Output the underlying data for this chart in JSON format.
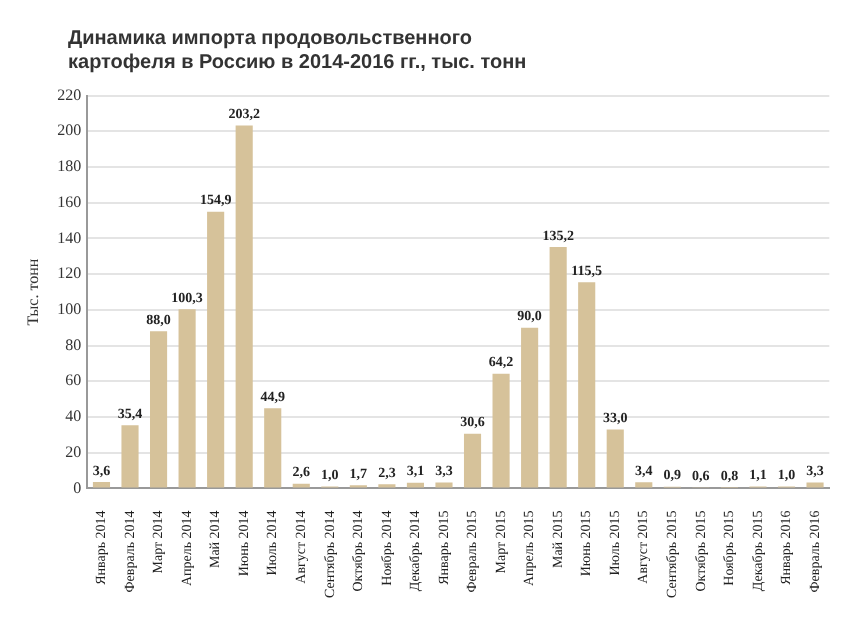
{
  "chart_data": {
    "type": "bar",
    "title": "Динамика импорта продовольственного картофеля в Россию в 2014-2016 гг., тыс. тонн",
    "ylabel": "Тыс. тонн",
    "categories": [
      "Январь 2014",
      "Февраль 2014",
      "Март 2014",
      "Апрель 2014",
      "Май 2014",
      "Июнь 2014",
      "Июль 2014",
      "Август 2014",
      "Сентябрь 2014",
      "Октябрь 2014",
      "Ноябрь 2014",
      "Декабрь 2014",
      "Январь 2015",
      "Февраль 2015",
      "Март 2015",
      "Апрель 2015",
      "Май 2015",
      "Июнь 2015",
      "Июль 2015",
      "Август 2015",
      "Сентябрь 2015",
      "Октябрь 2015",
      "Ноябрь 2015",
      "Декабрь 2015",
      "Январь 2016",
      "Февраль 2016"
    ],
    "values": [
      3.6,
      35.4,
      88.0,
      100.3,
      154.9,
      203.2,
      44.9,
      2.6,
      1.0,
      1.7,
      2.3,
      3.1,
      3.3,
      30.6,
      64.2,
      90.0,
      135.2,
      115.5,
      33.0,
      3.4,
      0.9,
      0.6,
      0.8,
      1.1,
      1.0,
      3.3
    ],
    "value_labels": [
      "3,6",
      "35,4",
      "88,0",
      "100,3",
      "154,9",
      "203,2",
      "44,9",
      "2,6",
      "1,0",
      "1,7",
      "2,3",
      "3,1",
      "3,3",
      "30,6",
      "64,2",
      "90,0",
      "135,2",
      "115,5",
      "33,0",
      "3,4",
      "0,9",
      "0,6",
      "0,8",
      "1,1",
      "1,0",
      "3,3"
    ],
    "color": "#d6c29a",
    "ylim": [
      0,
      220
    ],
    "yticks": [
      0,
      20,
      40,
      60,
      80,
      100,
      120,
      140,
      160,
      180,
      200,
      220
    ],
    "grid": "y",
    "legend": false
  }
}
